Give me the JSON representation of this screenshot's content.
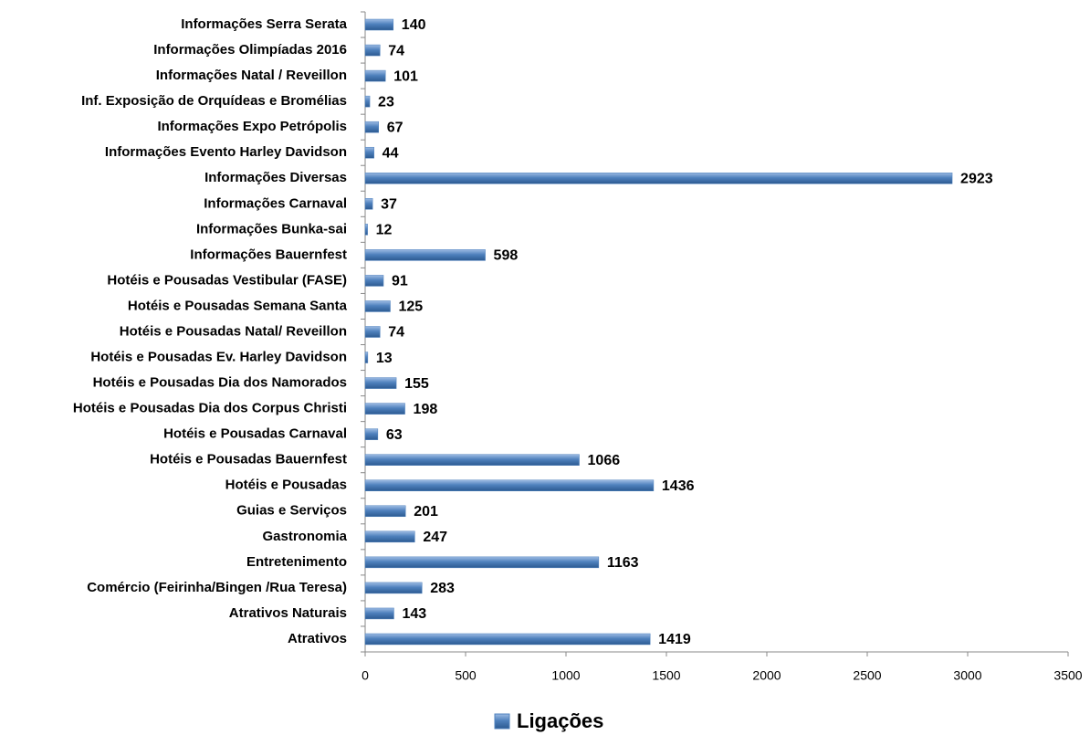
{
  "chart_data": {
    "type": "bar",
    "orientation": "horizontal",
    "categories": [
      "Informações Serra Serata",
      "Informações Olimpíadas 2016",
      "Informações Natal / Reveillon",
      "Inf. Exposição de Orquídeas e Bromélias",
      "Informações Expo Petrópolis",
      "Informações Evento Harley Davidson",
      "Informações Diversas",
      "Informações Carnaval",
      "Informações Bunka-sai",
      "Informações Bauernfest",
      "Hotéis e Pousadas Vestibular (FASE)",
      "Hotéis e Pousadas Semana Santa",
      "Hotéis e Pousadas Natal/ Reveillon",
      "Hotéis e Pousadas Ev. Harley Davidson",
      "Hotéis e Pousadas Dia dos Namorados",
      "Hotéis e Pousadas Dia dos Corpus Christi",
      "Hotéis e Pousadas Carnaval",
      "Hotéis e Pousadas  Bauernfest",
      "Hotéis e Pousadas",
      "Guias e Serviços",
      "Gastronomia",
      "Entretenimento",
      "Comércio (Feirinha/Bingen /Rua Teresa)",
      "Atrativos Naturais",
      "Atrativos"
    ],
    "series": [
      {
        "name": "Ligações",
        "color": "#4f81bd",
        "values": [
          140,
          74,
          101,
          23,
          67,
          44,
          2923,
          37,
          12,
          598,
          91,
          125,
          74,
          13,
          155,
          198,
          63,
          1066,
          1436,
          201,
          247,
          1163,
          283,
          143,
          1419
        ]
      }
    ],
    "xlim": [
      0,
      3500
    ],
    "xticks": [
      0,
      500,
      1000,
      1500,
      2000,
      2500,
      3000,
      3500
    ],
    "legend": "bottom"
  }
}
